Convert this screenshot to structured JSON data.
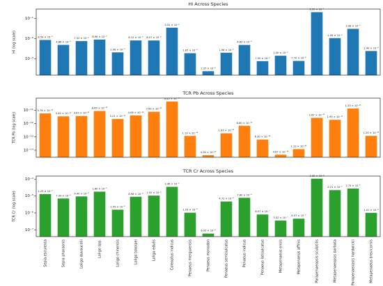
{
  "chart_data": [
    {
      "type": "bar",
      "title": "HI Across Species",
      "ylabel": "HI (log scale)",
      "color": "#1f77b4",
      "log_scale": true,
      "ylim": [
        0.00015,
        0.3
      ],
      "yticks": [
        {
          "value": 0.1,
          "label": "10⁻¹"
        },
        {
          "value": 0.01,
          "label": "10⁻²"
        },
        {
          "value": 0.001,
          "label": "10⁻³"
        }
      ],
      "values": [
        0.00859,
        0.00486,
        0.00752,
        0.00898,
        0.00206,
        0.00812,
        0.00807,
        0.0352,
        0.00187,
        0.000237,
        0.00198,
        0.00483,
        0.00075,
        0.0014,
        0.00077,
        0.209,
        0.0106,
        0.0308,
        0.0024
      ],
      "value_labels": [
        "8.59 × 10⁻³",
        "4.86 × 10⁻³",
        "7.52 × 10⁻³",
        "8.98 × 10⁻³",
        "2.06 × 10⁻³",
        "8.12 × 10⁻³",
        "8.07 × 10⁻³",
        "3.52 × 10⁻²",
        "1.87 × 10⁻³",
        "2.37 × 10⁻⁴",
        "1.98 × 10⁻³",
        "4.83 × 10⁻³",
        "7.50 × 10⁻⁴",
        "1.40 × 10⁻³",
        "7.70 × 10⁻⁴",
        "2.09 × 10⁻¹",
        "1.06 × 10⁻²",
        "3.08 × 10⁻²",
        "2.40 × 10⁻³"
      ]
    },
    {
      "type": "bar",
      "title": "TCR Pb Across Species",
      "ylabel": "TCR Pb (log scale)",
      "color": "#ff7f0e",
      "log_scale": true,
      "ylim": [
        3e-15,
        8e-11
      ],
      "yticks": [
        {
          "value": 1e-11,
          "label": "10⁻¹¹"
        },
        {
          "value": 1e-12,
          "label": "10⁻¹²"
        },
        {
          "value": 1e-13,
          "label": "10⁻¹³"
        },
        {
          "value": 1e-14,
          "label": "10⁻¹⁴"
        }
      ],
      "values": [
        5.76e-12,
        3.45e-12,
        3.67e-12,
        8.69e-12,
        2.21e-12,
        4.06e-12,
        7.61e-12,
        4.45e-11,
        1.19e-13,
        4.28e-15,
        1.87e-13,
        6.8e-13,
        6.3e-14,
        4.67e-15,
        1.22e-14,
        2.67e-12,
        1.9e-12,
        1.33e-11,
        1.2e-13
      ],
      "value_labels": [
        "5.76 × 10⁻¹²",
        "3.45 × 10⁻¹²",
        "3.67 × 10⁻¹²",
        "8.69 × 10⁻¹²",
        "2.21 × 10⁻¹²",
        "4.06 × 10⁻¹²",
        "7.61 × 10⁻¹²",
        "4.45 × 10⁻¹¹",
        "1.19 × 10⁻¹³",
        "4.28 × 10⁻¹⁵",
        "1.87 × 10⁻¹³",
        "6.80 × 10⁻¹³",
        "6.30 × 10⁻¹⁴",
        "4.67 × 10⁻¹⁵",
        "1.22 × 10⁻¹⁴",
        "2.67 × 10⁻¹²",
        "1.90 × 10⁻¹²",
        "1.33 × 10⁻¹¹",
        "1.20 × 10⁻¹³"
      ]
    },
    {
      "type": "bar",
      "title": "TCR Cr Across Species",
      "ylabel": "TCR Cr (log scale)",
      "color": "#2ca02c",
      "log_scale": true,
      "ylim": [
        4e-08,
        0.00015
      ],
      "yticks": [
        {
          "value": 0.0001,
          "label": "10⁻⁴"
        },
        {
          "value": 1e-05,
          "label": "10⁻⁵"
        },
        {
          "value": 1e-06,
          "label": "10⁻⁶"
        },
        {
          "value": 1e-07,
          "label": "10⁻⁷"
        }
      ],
      "categories": [
        "Sepia esculenta",
        "Sepia pharaonis",
        "Loligo duvaucelii",
        "Loligo spp.",
        "Loligo chinensis",
        "Loligo tokoipei",
        "Loligo edulis",
        "Coleoptus indicus",
        "Penaeus merguiensis",
        "Penaeus monodon",
        "Penaeus semisulcatus",
        "Penaeus indicus",
        "Penaeus latisulcatus",
        "Metapenaeus ensis",
        "Metapenaeus affinis",
        "Parapenaeopsis sculptilis",
        "Metapenaeopsis barbata",
        "Parapenaeopsis hardwickii",
        "Metapenaeus brevicornis"
      ],
      "values": [
        1.29e-05,
        7.09e-06,
        9.4e-06,
        1.8e-05,
        1.55e-06,
        8.98e-06,
        1.05e-05,
        3.46e-05,
        1.03e-06,
        6.05e-08,
        4.72e-06,
        7.8e-06,
        8.07e-07,
        3.52e-07,
        4.57e-07,
        0.000105,
        2.21e-05,
        2.74e-05,
        1.01e-06
      ],
      "value_labels": [
        "1.29 × 10⁻⁵",
        "7.09 × 10⁻⁶",
        "9.40 × 10⁻⁶",
        "1.80 × 10⁻⁵",
        "1.55 × 10⁻⁶",
        "8.98 × 10⁻⁶",
        "1.05 × 10⁻⁵",
        "3.46 × 10⁻⁵",
        "1.03 × 10⁻⁶",
        "6.05 × 10⁻⁸",
        "4.72 × 10⁻⁶",
        "7.80 × 10⁻⁶",
        "8.07 × 10⁻⁷",
        "3.52 × 10⁻⁷",
        "4.57 × 10⁻⁷",
        "1.05 × 10⁻⁴",
        "2.21 × 10⁻⁵",
        "2.74 × 10⁻⁵",
        "1.01 × 10⁻⁶"
      ]
    }
  ]
}
